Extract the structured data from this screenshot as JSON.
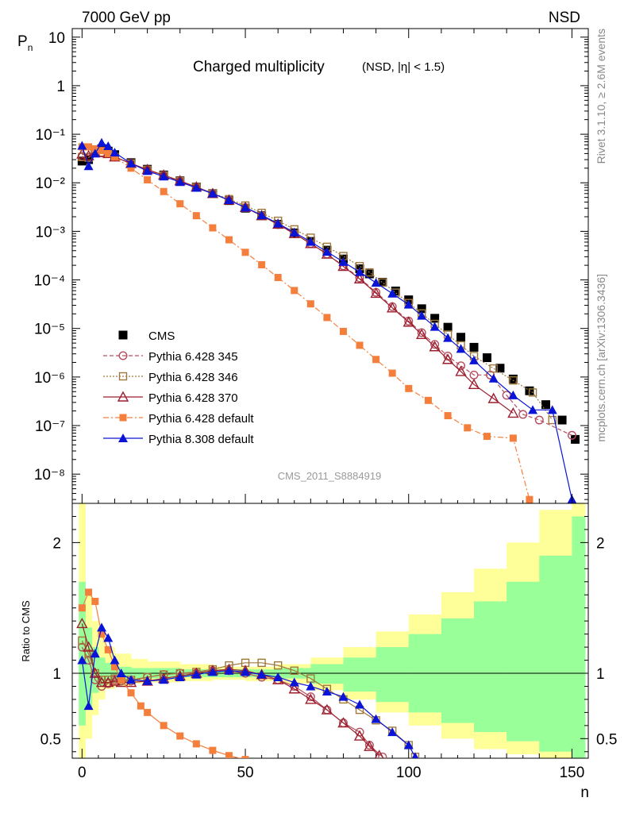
{
  "header": {
    "beam_label": "7000 GeV pp",
    "process_label": "NSD",
    "side_label_top": "Rivet 3.1.10, ≥ 2.6M events",
    "side_label_bottom": "mcplots.cern.ch [arXiv:1306.3436]",
    "analysis_label": "CMS_2011_S8884919"
  },
  "chart_data": [
    {
      "panel": "main",
      "type": "scatter",
      "title": "Charged multiplicity",
      "subtitle": "(NSD, |η| < 1.5)",
      "xlabel": "n",
      "ylabel": "Pn",
      "ylim": [
        2.5e-09,
        15
      ],
      "yscale": "log",
      "xlim": [
        -3,
        155
      ],
      "y_ticks": [
        "10⁻⁸",
        "10⁻⁷",
        "10⁻⁶",
        "10⁻⁵",
        "10⁻⁴",
        "10⁻³",
        "10⁻²",
        "10⁻¹",
        "1",
        "10"
      ],
      "legend_position": "bottom-left",
      "series": [
        {
          "name": "CMS",
          "color": "#000000",
          "marker": "square",
          "x": [
            0,
            2,
            4,
            6,
            8,
            10,
            15,
            20,
            25,
            30,
            35,
            40,
            45,
            50,
            55,
            60,
            65,
            70,
            75,
            80,
            85,
            88,
            92,
            96,
            100,
            104,
            108,
            112,
            116,
            120,
            124,
            128,
            132,
            137,
            142,
            147,
            151
          ],
          "y": [
            0.028,
            0.03,
            0.045,
            0.05,
            0.045,
            0.038,
            0.026,
            0.019,
            0.0145,
            0.011,
            0.0082,
            0.006,
            0.0043,
            0.003,
            0.0021,
            0.0014,
            0.00093,
            0.00062,
            0.00041,
            0.00027,
            0.00017,
            0.000133,
            8.96e-05,
            5.92e-05,
            3.89e-05,
            2.55e-05,
            1.62e-05,
            1.06e-05,
            6.6e-06,
            4.1e-06,
            2.5e-06,
            1.52e-06,
            9.1e-07,
            5.2e-07,
            2.7e-07,
            1.3e-07,
            5.2e-08
          ]
        },
        {
          "name": "Pythia 6.428 345",
          "color": "#b54d5f",
          "marker": "open-circle",
          "line": "dashed",
          "x": [
            0,
            2,
            4,
            6,
            8,
            10,
            15,
            20,
            25,
            30,
            35,
            40,
            45,
            50,
            55,
            60,
            65,
            70,
            75,
            80,
            85,
            90,
            95,
            100,
            104,
            108,
            112,
            116,
            120,
            125,
            130,
            135,
            140,
            150
          ],
          "y": [
            0.035,
            0.033,
            0.042,
            0.042,
            0.04,
            0.034,
            0.025,
            0.0185,
            0.0142,
            0.0108,
            0.0081,
            0.006,
            0.0044,
            0.0031,
            0.0021,
            0.00138,
            0.00089,
            0.00056,
            0.00034,
            0.000195,
            0.00011,
            5.55e-05,
            2.82e-05,
            1.42e-05,
            8.2e-06,
            4.7e-06,
            2.7e-06,
            1.7e-06,
            1.1e-06,
            1.1e-06,
            4.2e-07,
            1.7e-07,
            1.3e-07,
            6.3e-08
          ]
        },
        {
          "name": "Pythia 6.428 346",
          "color": "#a0783c",
          "marker": "open-square",
          "line": "dotted",
          "x": [
            0,
            2,
            4,
            6,
            8,
            10,
            15,
            20,
            25,
            30,
            35,
            40,
            45,
            50,
            55,
            60,
            65,
            70,
            75,
            80,
            85,
            88,
            92,
            96,
            100,
            104,
            108,
            112,
            116,
            120,
            126,
            132,
            138,
            144
          ],
          "y": [
            0.034,
            0.033,
            0.042,
            0.042,
            0.04,
            0.034,
            0.025,
            0.0185,
            0.0142,
            0.0109,
            0.0082,
            0.0061,
            0.0046,
            0.0034,
            0.0024,
            0.00165,
            0.0011,
            0.00074,
            0.00048,
            0.00031,
            0.000192,
            0.000143,
            8.85e-05,
            5.46e-05,
            3.34e-05,
            2.04e-05,
            1.24e-05,
            7.5e-06,
            4.5e-06,
            2.7e-06,
            1.5e-06,
            8.5e-07,
            4.8e-07,
            1.3e-07
          ]
        },
        {
          "name": "Pythia 6.428 370",
          "color": "#9c1f2e",
          "marker": "open-triangle",
          "line": "solid",
          "x": [
            0,
            2,
            4,
            6,
            8,
            10,
            15,
            20,
            25,
            30,
            35,
            40,
            45,
            50,
            55,
            60,
            65,
            70,
            75,
            80,
            85,
            90,
            95,
            100,
            104,
            108,
            112,
            116,
            120,
            126,
            132
          ],
          "y": [
            0.039,
            0.036,
            0.042,
            0.042,
            0.04,
            0.034,
            0.025,
            0.0187,
            0.0144,
            0.011,
            0.0082,
            0.006,
            0.0044,
            0.0031,
            0.0021,
            0.0014,
            0.0009,
            0.00056,
            0.00034,
            0.00019,
            0.000105,
            5.3e-05,
            2.65e-05,
            1.35e-05,
            7.5e-06,
            4.2e-06,
            2.3e-06,
            1.3e-06,
            7e-07,
            3.6e-07,
            1.8e-07
          ]
        },
        {
          "name": "Pythia 6.428 default",
          "color": "#f47f3c",
          "marker": "filled-square",
          "line": "dashdot",
          "x": [
            0,
            2,
            4,
            6,
            8,
            10,
            15,
            20,
            25,
            30,
            35,
            40,
            45,
            50,
            55,
            60,
            65,
            70,
            75,
            80,
            85,
            90,
            95,
            100,
            106,
            112,
            118,
            124,
            132,
            137
          ],
          "y": [
            0.055,
            0.055,
            0.05,
            0.046,
            0.04,
            0.034,
            0.02,
            0.0115,
            0.0066,
            0.0037,
            0.0021,
            0.00118,
            0.00067,
            0.00037,
            0.000205,
            0.000112,
            6.05e-05,
            3.21e-05,
            1.68e-05,
            8.7e-06,
            4.5e-06,
            2.3e-06,
            1.2e-06,
            5.8e-07,
            3.3e-07,
            1.6e-07,
            9e-08,
            6e-08,
            5.5e-08,
            3e-09
          ]
        },
        {
          "name": "Pythia 8.308 default",
          "color": "#0a14d6",
          "marker": "filled-triangle",
          "line": "solid",
          "x": [
            0,
            2,
            4,
            6,
            8,
            10,
            15,
            20,
            25,
            30,
            35,
            40,
            45,
            50,
            55,
            60,
            65,
            70,
            75,
            80,
            85,
            90,
            95,
            100,
            104,
            108,
            112,
            116,
            120,
            126,
            132,
            138,
            144,
            150
          ],
          "y": [
            0.058,
            0.022,
            0.04,
            0.067,
            0.057,
            0.042,
            0.025,
            0.0175,
            0.0135,
            0.0104,
            0.0079,
            0.006,
            0.0044,
            0.0031,
            0.00215,
            0.00145,
            0.00095,
            0.00061,
            0.00038,
            0.000235,
            0.000145,
            8.75e-05,
            5.23e-05,
            3.11e-05,
            1.83e-05,
            1.08e-05,
            6.4e-06,
            3.8e-06,
            2.2e-06,
            9.3e-07,
            4.2e-07,
            2.1e-07,
            2.1e-07,
            3e-09
          ]
        }
      ]
    },
    {
      "panel": "ratio",
      "type": "line",
      "ylabel": "Ratio to CMS",
      "xlabel": "n",
      "ylim": [
        0.35,
        2.3
      ],
      "xlim": [
        -3,
        155
      ],
      "y_ticks": [
        "0.5",
        "1",
        "2"
      ],
      "x_ticks": [
        "0",
        "50",
        "100",
        "150"
      ],
      "bands": [
        {
          "name": "outer",
          "color": "#ffff99",
          "x": [
            -1,
            1,
            3,
            5,
            7,
            10,
            15,
            20,
            30,
            40,
            50,
            60,
            70,
            80,
            90,
            100,
            110,
            120,
            130,
            140,
            150,
            154
          ],
          "hi": [
            2.4,
            1.6,
            1.4,
            1.3,
            1.2,
            1.15,
            1.11,
            1.09,
            1.07,
            1.05,
            1.05,
            1.07,
            1.12,
            1.2,
            1.32,
            1.45,
            1.62,
            1.8,
            2.0,
            2.25,
            2.4,
            2.4
          ],
          "lo": [
            0.3,
            0.5,
            0.68,
            0.8,
            0.88,
            0.9,
            0.92,
            0.93,
            0.94,
            0.95,
            0.94,
            0.92,
            0.87,
            0.8,
            0.7,
            0.6,
            0.5,
            0.42,
            0.38,
            0.35,
            0.35,
            0.35
          ]
        },
        {
          "name": "inner",
          "color": "#99ff99",
          "x": [
            -1,
            1,
            3,
            5,
            7,
            10,
            15,
            20,
            30,
            40,
            50,
            60,
            70,
            80,
            90,
            100,
            110,
            120,
            130,
            140,
            150,
            154
          ],
          "hi": [
            1.7,
            1.35,
            1.2,
            1.12,
            1.08,
            1.05,
            1.04,
            1.04,
            1.03,
            1.03,
            1.03,
            1.04,
            1.07,
            1.12,
            1.2,
            1.3,
            1.42,
            1.55,
            1.7,
            1.9,
            2.2,
            2.2
          ],
          "lo": [
            0.6,
            0.72,
            0.85,
            0.9,
            0.94,
            0.95,
            0.96,
            0.96,
            0.97,
            0.97,
            0.97,
            0.96,
            0.92,
            0.86,
            0.78,
            0.7,
            0.62,
            0.55,
            0.48,
            0.4,
            0.35,
            0.35
          ]
        }
      ],
      "series": [
        {
          "name": "Pythia 6.428 345",
          "color": "#b54d5f",
          "marker": "open-circle",
          "x": [
            0,
            2,
            4,
            6,
            8,
            10,
            12,
            15,
            20,
            25,
            30,
            35,
            40,
            45,
            50,
            55,
            60,
            65,
            70,
            75,
            80,
            85,
            88,
            92
          ],
          "y": [
            1.2,
            1.1,
            0.95,
            0.9,
            0.92,
            0.95,
            0.94,
            0.94,
            0.97,
            0.99,
            1.0,
            1.0,
            1.02,
            1.02,
            1.0,
            0.97,
            0.95,
            0.9,
            0.82,
            0.72,
            0.62,
            0.55,
            0.45,
            0.36
          ]
        },
        {
          "name": "Pythia 6.428 346",
          "color": "#a0783c",
          "marker": "open-square",
          "x": [
            0,
            2,
            4,
            6,
            8,
            10,
            12,
            15,
            20,
            25,
            30,
            35,
            40,
            45,
            50,
            55,
            60,
            65,
            70,
            75,
            80,
            85,
            90,
            95,
            100,
            102
          ],
          "y": [
            1.25,
            1.15,
            1.0,
            0.95,
            0.95,
            0.96,
            0.95,
            0.95,
            0.97,
            0.99,
            1.0,
            1.01,
            1.03,
            1.06,
            1.08,
            1.08,
            1.06,
            1.02,
            0.96,
            0.88,
            0.8,
            0.72,
            0.64,
            0.56,
            0.45,
            0.36
          ]
        },
        {
          "name": "Pythia 6.428 370",
          "color": "#9c1f2e",
          "marker": "open-triangle",
          "x": [
            0,
            2,
            4,
            6,
            8,
            10,
            12,
            15,
            20,
            25,
            30,
            35,
            40,
            45,
            50,
            55,
            60,
            65,
            70,
            75,
            80,
            85,
            88,
            91
          ],
          "y": [
            1.38,
            1.2,
            1.0,
            0.93,
            0.93,
            0.94,
            0.93,
            0.93,
            0.94,
            0.96,
            0.98,
            1.0,
            1.02,
            1.03,
            1.02,
            0.99,
            0.95,
            0.88,
            0.8,
            0.72,
            0.62,
            0.52,
            0.44,
            0.37
          ]
        },
        {
          "name": "Pythia 6.428 default",
          "color": "#f47f3c",
          "marker": "filled-square",
          "x": [
            0,
            2,
            4,
            6,
            8,
            10,
            12,
            15,
            18,
            20,
            25,
            30,
            35,
            40,
            45,
            50
          ],
          "y": [
            1.5,
            1.62,
            1.55,
            1.3,
            1.18,
            1.05,
            0.95,
            0.85,
            0.75,
            0.7,
            0.6,
            0.52,
            0.46,
            0.41,
            0.37,
            0.34
          ]
        },
        {
          "name": "Pythia 8.308 default",
          "color": "#0a14d6",
          "marker": "filled-triangle",
          "x": [
            0,
            2,
            4,
            6,
            8,
            10,
            12,
            15,
            20,
            25,
            30,
            35,
            40,
            45,
            50,
            55,
            60,
            65,
            70,
            75,
            80,
            85,
            90,
            95,
            100,
            102
          ],
          "y": [
            1.1,
            0.75,
            1.15,
            1.35,
            1.27,
            1.1,
            1.0,
            0.95,
            0.94,
            0.95,
            0.97,
            0.99,
            1.01,
            1.02,
            1.01,
            0.99,
            0.97,
            0.93,
            0.9,
            0.86,
            0.82,
            0.76,
            0.65,
            0.55,
            0.45,
            0.36
          ]
        }
      ]
    }
  ]
}
